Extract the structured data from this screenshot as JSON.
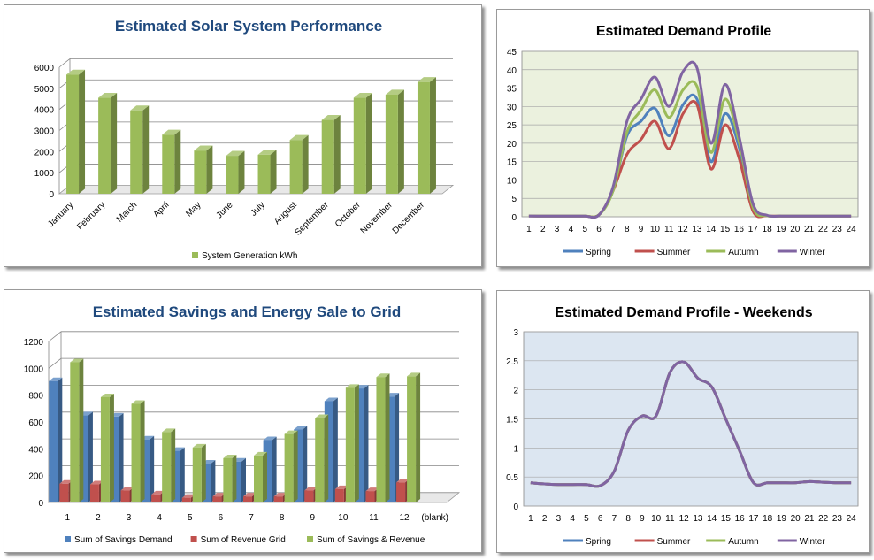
{
  "chart_data": [
    {
      "type": "bar",
      "title": "Estimated Solar System Performance",
      "categories": [
        "January",
        "February",
        "March",
        "April",
        "May",
        "June",
        "July",
        "August",
        "September",
        "October",
        "November",
        "December"
      ],
      "series": [
        {
          "name": "System Generation kWh",
          "values": [
            5650,
            4550,
            3950,
            2800,
            2050,
            1800,
            1850,
            2550,
            3500,
            4550,
            4700,
            5300
          ],
          "color": "#9bbb59"
        }
      ],
      "y_ticks": [
        "0",
        "1000",
        "2000",
        "3000",
        "4000",
        "5000",
        "6000"
      ],
      "ylim": [
        0,
        6000
      ],
      "legend": "bottom",
      "grid": true,
      "style": "3d"
    },
    {
      "type": "line",
      "title": "Estimated Demand Profile",
      "x": [
        "1",
        "2",
        "3",
        "4",
        "5",
        "6",
        "7",
        "8",
        "9",
        "10",
        "11",
        "12",
        "13",
        "14",
        "15",
        "16",
        "17",
        "18",
        "19",
        "20",
        "21",
        "22",
        "23",
        "24"
      ],
      "series": [
        {
          "name": "Spring",
          "color": "#4f81bd",
          "values": [
            0.2,
            0.2,
            0.2,
            0.2,
            0.2,
            0.5,
            7,
            22,
            26,
            29.5,
            22,
            30.5,
            32,
            15,
            28,
            19,
            2,
            0.3,
            0.2,
            0.2,
            0.2,
            0.2,
            0.2,
            0.2
          ]
        },
        {
          "name": "Summer",
          "color": "#c0504d",
          "values": [
            0.2,
            0.2,
            0.2,
            0.2,
            0.2,
            0.5,
            7,
            17,
            21,
            26,
            18.5,
            28,
            30.5,
            13,
            25,
            16,
            1.5,
            0.3,
            0.2,
            0.2,
            0.2,
            0.2,
            0.2,
            0.2
          ]
        },
        {
          "name": "Autumn",
          "color": "#9bbb59",
          "values": [
            0.2,
            0.2,
            0.2,
            0.2,
            0.2,
            0.5,
            7,
            23,
            29,
            34.5,
            27,
            34.5,
            35.5,
            17.5,
            32,
            20.5,
            2.5,
            0.3,
            0.2,
            0.2,
            0.2,
            0.2,
            0.2,
            0.2
          ]
        },
        {
          "name": "Winter",
          "color": "#8064a2",
          "values": [
            0.2,
            0.2,
            0.2,
            0.2,
            0.2,
            0.5,
            8,
            26,
            32,
            38,
            30,
            39.5,
            40.5,
            20,
            36,
            22,
            3.5,
            0.4,
            0.2,
            0.2,
            0.2,
            0.2,
            0.2,
            0.2
          ]
        }
      ],
      "y_ticks": [
        "0",
        "5",
        "10",
        "15",
        "20",
        "25",
        "30",
        "35",
        "40",
        "45"
      ],
      "ylim": [
        0,
        45
      ],
      "legend": "bottom",
      "plot_background": "#ebf1de",
      "grid": true
    },
    {
      "type": "bar",
      "title": "Estimated Savings and Energy Sale to Grid",
      "categories": [
        "1",
        "2",
        "3",
        "4",
        "5",
        "6",
        "7",
        "8",
        "9",
        "10",
        "11",
        "12",
        "(blank)"
      ],
      "series": [
        {
          "name": "Sum of Savings Demand",
          "color": "#4f81bd",
          "values": [
            905,
            650,
            640,
            470,
            385,
            290,
            305,
            465,
            545,
            755,
            850,
            790,
            null
          ]
        },
        {
          "name": "Sum of Revenue Grid",
          "color": "#c0504d",
          "values": [
            140,
            135,
            90,
            60,
            35,
            45,
            45,
            45,
            90,
            100,
            85,
            150,
            null
          ]
        },
        {
          "name": "Sum of Savings & Revenue",
          "color": "#9bbb59",
          "values": [
            1045,
            785,
            735,
            525,
            410,
            330,
            350,
            510,
            630,
            855,
            935,
            940,
            null
          ]
        }
      ],
      "y_ticks": [
        "0",
        "200",
        "400",
        "600",
        "800",
        "1000",
        "1200"
      ],
      "ylim": [
        0,
        1200
      ],
      "legend": "bottom",
      "grid": true,
      "style": "3d"
    },
    {
      "type": "line",
      "title": "Estimated Demand Profile - Weekends",
      "x": [
        "1",
        "2",
        "3",
        "4",
        "5",
        "6",
        "7",
        "8",
        "9",
        "10",
        "11",
        "12",
        "13",
        "14",
        "15",
        "16",
        "17",
        "18",
        "19",
        "20",
        "21",
        "22",
        "23",
        "24"
      ],
      "series": [
        {
          "name": "Spring",
          "color": "#4f81bd",
          "values": [
            0.4,
            0.38,
            0.37,
            0.37,
            0.37,
            0.35,
            0.6,
            1.3,
            1.55,
            1.55,
            2.3,
            2.48,
            2.2,
            2.05,
            1.5,
            0.95,
            0.4,
            0.4,
            0.4,
            0.4,
            0.42,
            0.41,
            0.4,
            0.4
          ]
        },
        {
          "name": "Summer",
          "color": "#c0504d",
          "values": [
            0.4,
            0.38,
            0.37,
            0.37,
            0.37,
            0.35,
            0.6,
            1.3,
            1.55,
            1.55,
            2.3,
            2.48,
            2.2,
            2.05,
            1.5,
            0.95,
            0.4,
            0.4,
            0.4,
            0.4,
            0.42,
            0.41,
            0.4,
            0.4
          ]
        },
        {
          "name": "Autumn",
          "color": "#9bbb59",
          "values": [
            0.4,
            0.38,
            0.37,
            0.37,
            0.37,
            0.35,
            0.6,
            1.3,
            1.55,
            1.55,
            2.3,
            2.48,
            2.2,
            2.05,
            1.5,
            0.95,
            0.4,
            0.4,
            0.4,
            0.4,
            0.42,
            0.41,
            0.4,
            0.4
          ]
        },
        {
          "name": "Winter",
          "color": "#8064a2",
          "values": [
            0.4,
            0.38,
            0.37,
            0.37,
            0.37,
            0.35,
            0.6,
            1.3,
            1.55,
            1.55,
            2.3,
            2.48,
            2.2,
            2.05,
            1.5,
            0.95,
            0.4,
            0.4,
            0.4,
            0.4,
            0.42,
            0.41,
            0.4,
            0.4
          ]
        }
      ],
      "y_ticks": [
        "0",
        "0.5",
        "1",
        "1.5",
        "2",
        "2.5",
        "3"
      ],
      "ylim": [
        0,
        3
      ],
      "legend": "bottom",
      "plot_background": "#dce6f1",
      "grid": true
    }
  ]
}
